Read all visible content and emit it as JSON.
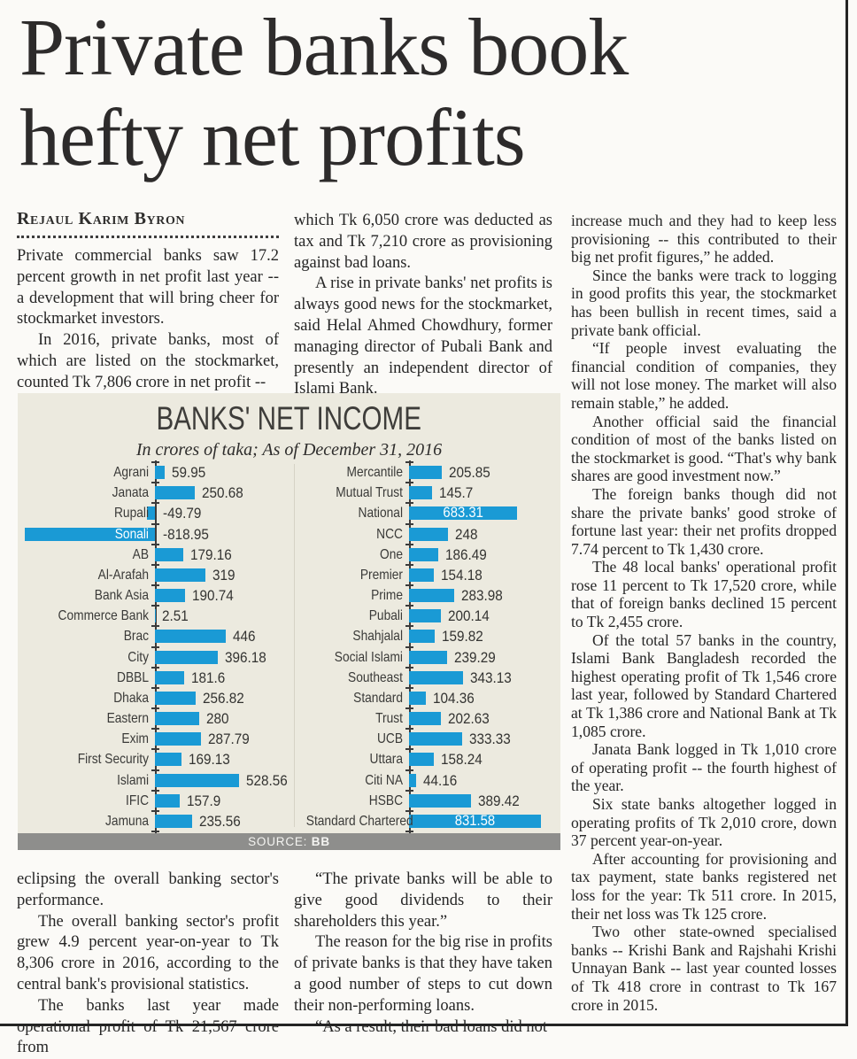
{
  "article": {
    "headline_line1": "Private banks book",
    "headline_line2": "hefty net profits",
    "byline": "Rejaul Karim Byron",
    "col1_top": [
      {
        "text": "Private commercial banks saw 17.2 percent growth in net profit last year -- a development that will bring cheer for stockmarket investors.",
        "indent": false
      },
      {
        "text": "In 2016, private banks, most of which are listed on the stockmarket, counted Tk 7,806 crore in net profit --",
        "indent": true
      }
    ],
    "col2_top": [
      {
        "text": "which Tk 6,050 crore was deducted as tax and Tk 7,210 crore as provisioning against bad loans.",
        "indent": false
      },
      {
        "text": "A rise in private banks' net profits is always good news for the stockmarket, said Helal Ahmed Chowdhury, former managing director of Pubali Bank and presently an independent director of Islami Bank.",
        "indent": true
      }
    ],
    "col3": [
      {
        "text": "increase much and they had to keep less provisioning -- this contributed to their big net profit figures,” he added.",
        "indent": false
      },
      {
        "text": "Since the banks were track to logging in good profits this year, the stockmarket has been bullish in recent times, said a private bank official.",
        "indent": true
      },
      {
        "text": "“If people invest evaluating the financial condition of companies, they will not lose money. The market will also remain stable,” he added.",
        "indent": true
      },
      {
        "text": "Another official said the financial condition of most of the banks listed on the stockmarket is good. “That's why bank shares are good investment now.”",
        "indent": true
      },
      {
        "text": "The foreign banks though did not share the private banks' good stroke of fortune last year: their net profits dropped 7.74 percent to Tk 1,430 crore.",
        "indent": true
      },
      {
        "text": "The 48 local banks' operational profit rose 11 percent to Tk 17,520 crore, while that of foreign banks declined 15 percent to Tk 2,455 crore.",
        "indent": true
      },
      {
        "text": "Of the total 57 banks in the country, Islami Bank Bangladesh recorded the highest operating profit of Tk 1,546 crore last year, followed by Standard Chartered at Tk 1,386 crore and National Bank at Tk 1,085 crore.",
        "indent": true
      },
      {
        "text": "Janata Bank logged in Tk 1,010 crore of operating profit -- the fourth highest of the year.",
        "indent": true
      },
      {
        "text": "Six state banks altogether logged in operating profits of Tk 2,010 crore, down 37 percent year-on-year.",
        "indent": true
      },
      {
        "text": "After accounting for provisioning and tax payment, state banks registered net loss for the year: Tk 511 crore. In 2015, their net loss was Tk 125 crore.",
        "indent": true
      },
      {
        "text": "Two other state-owned specialised banks -- Krishi Bank and Rajshahi Krishi Unnayan Bank -- last year counted losses of Tk 418 crore in contrast to Tk 167 crore in 2015.",
        "indent": true
      }
    ],
    "col1_bottom": [
      {
        "text": "eclipsing the overall banking sector's performance.",
        "indent": false
      },
      {
        "text": "The overall banking sector's profit grew 4.9 percent year-on-year to Tk 8,306 crore in 2016, according to the central bank's provisional statistics.",
        "indent": true
      },
      {
        "text": "The banks last year made operational profit of Tk 21,567 crore from",
        "indent": true
      }
    ],
    "col2_bottom": [
      {
        "text": "“The private banks will be able to give good dividends to their shareholders this year.”",
        "indent": true
      },
      {
        "text": "The reason for the big rise in profits of private banks is that they have taken a good number of steps to cut down their non-performing loans.",
        "indent": true
      },
      {
        "text": "“As a result, their bad loans did not",
        "indent": true
      }
    ]
  },
  "chart": {
    "title": "BANKS' NET INCOME",
    "subtitle": "In crores of taka; As of December 31, 2016",
    "source_label": "SOURCE:",
    "source_value": "BB"
  },
  "chart_data": {
    "type": "bar",
    "orientation": "horizontal",
    "title": "BANKS' NET INCOME",
    "subtitle": "In crores of taka; As of December 31, 2016",
    "unit": "crores of taka",
    "value_range_approx": [
      -818.95,
      831.58
    ],
    "series": [
      {
        "name": "left-panel",
        "categories": [
          "Agrani",
          "Janata",
          "Rupali",
          "Sonali",
          "AB",
          "Al-Arafah",
          "Bank Asia",
          "Commerce Bank",
          "Brac",
          "City",
          "DBBL",
          "Dhaka",
          "Eastern",
          "Exim",
          "First Security",
          "Islami",
          "IFIC",
          "Jamuna"
        ],
        "values": [
          59.95,
          250.68,
          -49.79,
          -818.95,
          179.16,
          319,
          190.74,
          2.51,
          446,
          396.18,
          181.6,
          256.82,
          280,
          287.79,
          169.13,
          528.56,
          157.9,
          235.56
        ]
      },
      {
        "name": "right-panel",
        "categories": [
          "Mercantile",
          "Mutual Trust",
          "National",
          "NCC",
          "One",
          "Premier",
          "Prime",
          "Pubali",
          "Shahjalal",
          "Social Islami",
          "Southeast",
          "Standard",
          "Trust",
          "UCB",
          "Uttara",
          "Citi NA",
          "HSBC",
          "Standard Chartered"
        ],
        "values": [
          205.85,
          145.7,
          683.31,
          248,
          186.49,
          154.18,
          283.98,
          200.14,
          159.82,
          239.29,
          343.13,
          104.36,
          202.63,
          333.33,
          158.24,
          44.16,
          389.42,
          831.58
        ]
      }
    ],
    "source": "BB"
  },
  "colors": {
    "bar": "#1a9ad5",
    "chart_bg": "#eceadf",
    "source_bar_bg": "#8e8e8c",
    "headline_text": "#2d2b2b",
    "body_text": "#262626"
  }
}
